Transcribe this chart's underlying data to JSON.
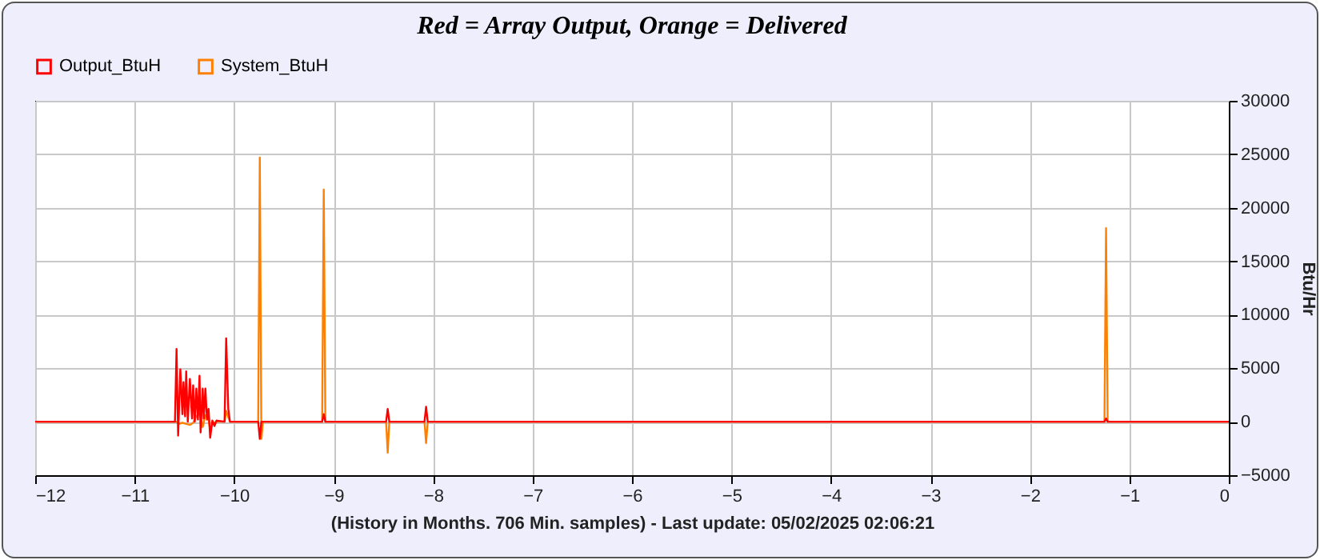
{
  "chart_data": {
    "type": "line",
    "title": "Red = Array Output, Orange = Delivered",
    "xlabel": "(History in Months. 706 Min. samples) - Last update: 05/02/2025 02:06:21",
    "ylabel": "Btu/Hr",
    "xlim": [
      -12,
      0
    ],
    "xticks": [
      -12,
      -11,
      -10,
      -9,
      -8,
      -7,
      -6,
      -5,
      -4,
      -3,
      -2,
      -1,
      0
    ],
    "ylim": [
      -5000,
      30000
    ],
    "yticks": [
      -5000,
      0,
      5000,
      10000,
      15000,
      20000,
      25000,
      30000
    ],
    "grid": true,
    "legend": "top left",
    "marker": "none",
    "line_style": "solid",
    "series": [
      {
        "name": "Output_BtuH",
        "color": "#ff0000",
        "x": [
          -12,
          -10.595,
          -10.579,
          -10.563,
          -10.541,
          -10.52,
          -10.509,
          -10.493,
          -10.482,
          -10.466,
          -10.445,
          -10.423,
          -10.412,
          -10.396,
          -10.38,
          -10.364,
          -10.348,
          -10.337,
          -10.316,
          -10.305,
          -10.289,
          -10.273,
          -10.257,
          -10.241,
          -10.219,
          -10.198,
          -10.177,
          -10.096,
          -10.08,
          -10.059,
          -10.042,
          -9.758,
          -9.742,
          -9.726,
          -9.115,
          -9.099,
          -9.083,
          -8.472,
          -8.456,
          -8.44,
          -8.086,
          -8.07,
          -8.054,
          -1.25,
          -1.234,
          -1.218,
          0
        ],
        "values": [
          0,
          0,
          6800,
          -1300,
          4900,
          700,
          3700,
          500,
          4700,
          0,
          4000,
          300,
          3400,
          0,
          3100,
          200,
          4300,
          -1000,
          3100,
          300,
          3100,
          200,
          1200,
          -1500,
          100,
          -400,
          100,
          0,
          7800,
          1200,
          0,
          0,
          -1600,
          0,
          0,
          700,
          0,
          0,
          1200,
          0,
          0,
          1400,
          0,
          0,
          300,
          0,
          0
        ]
      },
      {
        "name": "System_BtuH",
        "color": "#ff8000",
        "x": [
          -12,
          -10.579,
          -10.563,
          -10.52,
          -10.482,
          -10.445,
          -10.412,
          -10.38,
          -10.348,
          -10.316,
          -10.289,
          -10.257,
          -10.241,
          -10.219,
          -10.177,
          -10.096,
          -10.08,
          -10.042,
          -9.758,
          -9.742,
          -9.726,
          -9.71,
          -9.115,
          -9.099,
          -9.083,
          -8.472,
          -8.456,
          -8.44,
          -8.086,
          -8.07,
          -8.054,
          -1.25,
          -1.234,
          -1.218,
          0
        ],
        "values": [
          0,
          0,
          -200,
          -100,
          -200,
          -300,
          -100,
          500,
          800,
          -500,
          600,
          300,
          -800,
          -200,
          0,
          0,
          1000,
          0,
          0,
          24700,
          -1600,
          0,
          0,
          21700,
          0,
          0,
          -2900,
          0,
          0,
          -2000,
          0,
          0,
          18100,
          0,
          0
        ]
      }
    ]
  }
}
